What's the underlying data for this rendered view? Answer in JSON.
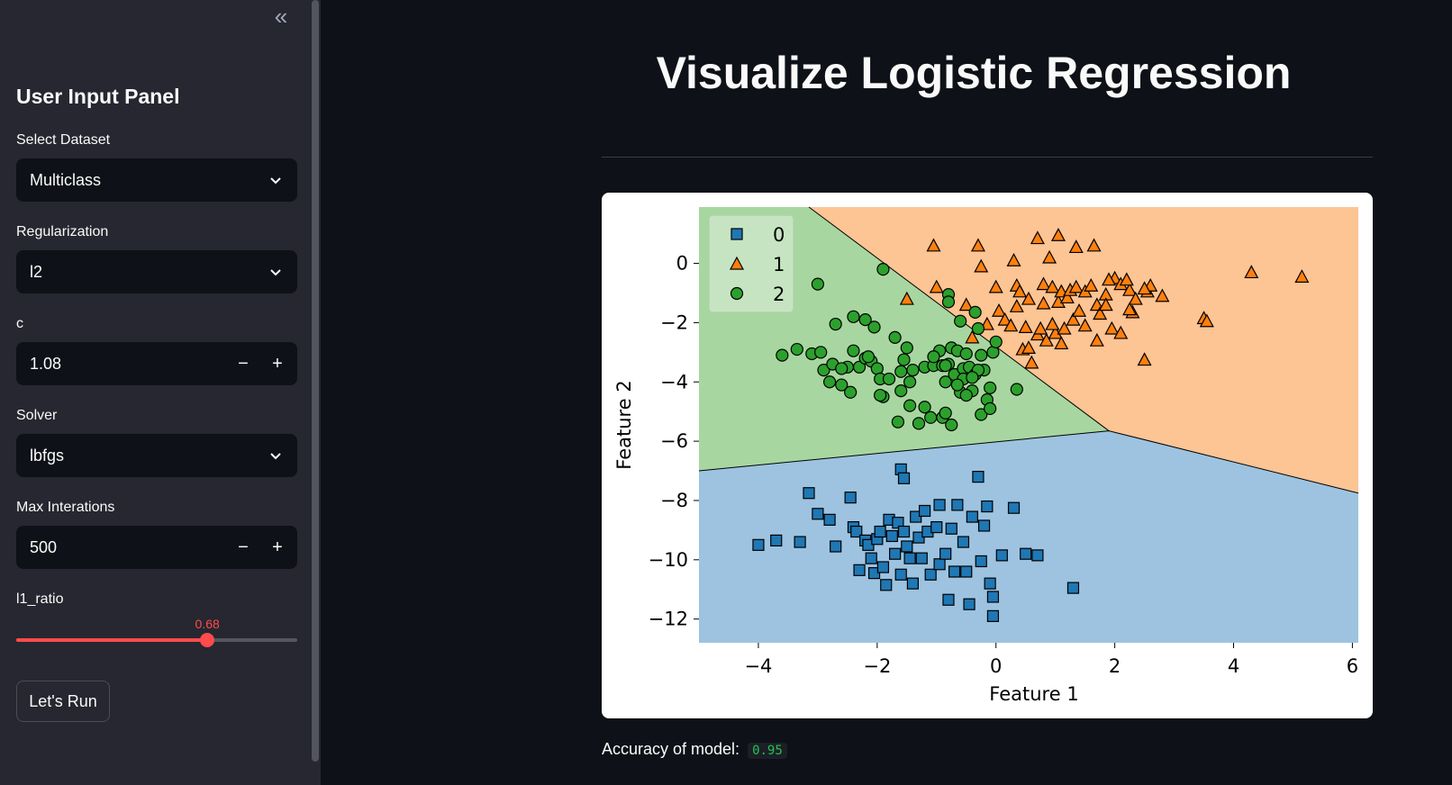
{
  "sidebar": {
    "collapse_icon": "«",
    "title": "User Input Panel",
    "dataset": {
      "label": "Select Dataset",
      "value": "Multiclass"
    },
    "regularization": {
      "label": "Regularization",
      "value": "l2"
    },
    "c": {
      "label": "c",
      "value": "1.08",
      "minus": "−",
      "plus": "+"
    },
    "solver": {
      "label": "Solver",
      "value": "lbfgs"
    },
    "max_iter": {
      "label": "Max Interations",
      "value": "500",
      "minus": "−",
      "plus": "+"
    },
    "l1_ratio": {
      "label": "l1_ratio",
      "value": "0.68",
      "min": 0,
      "max": 1
    },
    "run_button": "Let's Run"
  },
  "main": {
    "title": "Visualize Logistic Regression",
    "accuracy_label": "Accuracy of model:",
    "accuracy_value": "0.95"
  },
  "colors": {
    "accent": "#ff4b4b",
    "region_0": "#9dc3e0",
    "region_1": "#fdc494",
    "region_2": "#a8d6a0",
    "marker_0": "#1f77b4",
    "marker_1": "#ff7f0e",
    "marker_2": "#2ca02c"
  },
  "chart_data": {
    "type": "scatter",
    "title": "",
    "xlabel": "Feature 1",
    "ylabel": "Feature 2",
    "xlim": [
      -5.0,
      6.1
    ],
    "ylim": [
      -12.8,
      1.9
    ],
    "xticks": [
      -4,
      -2,
      0,
      2,
      4,
      6
    ],
    "yticks": [
      0,
      -2,
      -4,
      -6,
      -8,
      -10,
      -12
    ],
    "xtick_labels": [
      "−4",
      "−2",
      "0",
      "2",
      "4",
      "6"
    ],
    "ytick_labels": [
      "0",
      "−2",
      "−4",
      "−6",
      "−8",
      "−10",
      "−12"
    ],
    "legend": {
      "position": "top-left",
      "entries": [
        "0",
        "1",
        "2"
      ]
    },
    "boundaries": {
      "triple_point": [
        1.9,
        -5.65
      ],
      "left_x_at_y": -7.0,
      "top_x_at_ylim": -3.15,
      "right_y_at_xlim": -7.75
    },
    "series": [
      {
        "name": "0",
        "marker": "square",
        "points": [
          [
            -4.0,
            -9.5
          ],
          [
            -3.7,
            -9.35
          ],
          [
            -3.3,
            -9.4
          ],
          [
            -3.15,
            -7.75
          ],
          [
            -3.0,
            -8.45
          ],
          [
            -2.8,
            -8.65
          ],
          [
            -2.7,
            -9.55
          ],
          [
            -2.45,
            -7.9
          ],
          [
            -2.4,
            -8.9
          ],
          [
            -2.35,
            -9.05
          ],
          [
            -2.3,
            -10.35
          ],
          [
            -2.2,
            -9.35
          ],
          [
            -2.15,
            -9.5
          ],
          [
            -2.1,
            -9.95
          ],
          [
            -2.05,
            -10.45
          ],
          [
            -2.0,
            -9.3
          ],
          [
            -1.95,
            -9.05
          ],
          [
            -1.9,
            -10.25
          ],
          [
            -1.85,
            -10.85
          ],
          [
            -1.8,
            -8.65
          ],
          [
            -1.75,
            -9.2
          ],
          [
            -1.7,
            -9.8
          ],
          [
            -1.65,
            -8.75
          ],
          [
            -1.6,
            -10.5
          ],
          [
            -1.55,
            -9.05
          ],
          [
            -1.5,
            -9.55
          ],
          [
            -1.45,
            -9.95
          ],
          [
            -1.4,
            -10.8
          ],
          [
            -1.35,
            -8.55
          ],
          [
            -1.3,
            -9.25
          ],
          [
            -1.25,
            -9.95
          ],
          [
            -1.2,
            -8.35
          ],
          [
            -1.15,
            -9.05
          ],
          [
            -1.1,
            -10.5
          ],
          [
            -0.95,
            -10.15
          ],
          [
            -0.85,
            -9.8
          ],
          [
            -0.8,
            -11.35
          ],
          [
            -0.75,
            -8.95
          ],
          [
            -0.7,
            -10.4
          ],
          [
            -0.65,
            -8.15
          ],
          [
            -0.55,
            -9.4
          ],
          [
            -0.5,
            -10.4
          ],
          [
            -0.45,
            -11.5
          ],
          [
            -0.4,
            -8.55
          ],
          [
            -0.3,
            -7.2
          ],
          [
            -0.25,
            -10.05
          ],
          [
            -0.2,
            -8.85
          ],
          [
            -0.1,
            -10.8
          ],
          [
            -0.05,
            -11.9
          ],
          [
            -0.05,
            -11.25
          ],
          [
            -0.15,
            -8.2
          ],
          [
            0.1,
            -9.85
          ],
          [
            0.3,
            -8.25
          ],
          [
            0.5,
            -9.8
          ],
          [
            0.7,
            -9.85
          ],
          [
            1.3,
            -10.95
          ],
          [
            -1.6,
            -6.95
          ],
          [
            -1.55,
            -7.25
          ],
          [
            -0.95,
            -8.15
          ],
          [
            -1.0,
            -8.9
          ]
        ]
      },
      {
        "name": "1",
        "marker": "triangle",
        "points": [
          [
            -1.5,
            -1.2
          ],
          [
            -1.05,
            0.6
          ],
          [
            -1.0,
            -0.8
          ],
          [
            -0.3,
            0.6
          ],
          [
            -0.25,
            -0.1
          ],
          [
            0.0,
            -0.8
          ],
          [
            0.3,
            0.1
          ],
          [
            0.35,
            -0.75
          ],
          [
            0.4,
            -0.95
          ],
          [
            0.55,
            -1.2
          ],
          [
            0.7,
            0.85
          ],
          [
            0.8,
            -0.7
          ],
          [
            0.95,
            -0.8
          ],
          [
            1.05,
            -1.3
          ],
          [
            1.1,
            -0.95
          ],
          [
            1.2,
            -1.15
          ],
          [
            1.25,
            -0.9
          ],
          [
            1.35,
            -0.8
          ],
          [
            1.5,
            -0.95
          ],
          [
            1.6,
            -0.75
          ],
          [
            1.7,
            -1.4
          ],
          [
            1.75,
            -1.7
          ],
          [
            1.85,
            -1.05
          ],
          [
            2.0,
            -0.5
          ],
          [
            2.1,
            -0.7
          ],
          [
            2.25,
            -0.9
          ],
          [
            2.35,
            -1.2
          ],
          [
            2.55,
            -0.95
          ],
          [
            2.6,
            -0.75
          ],
          [
            2.8,
            -1.1
          ],
          [
            0.05,
            -1.6
          ],
          [
            0.15,
            -1.9
          ],
          [
            0.25,
            -2.1
          ],
          [
            0.5,
            -2.15
          ],
          [
            0.7,
            -2.4
          ],
          [
            0.85,
            -2.6
          ],
          [
            1.0,
            -2.35
          ],
          [
            1.15,
            -2.2
          ],
          [
            1.3,
            -1.9
          ],
          [
            1.5,
            -2.1
          ],
          [
            1.7,
            -2.6
          ],
          [
            1.95,
            -2.2
          ],
          [
            2.1,
            -2.35
          ],
          [
            2.3,
            -1.65
          ],
          [
            1.05,
            0.95
          ],
          [
            1.35,
            0.55
          ],
          [
            0.9,
            0.2
          ],
          [
            1.65,
            0.6
          ],
          [
            -0.5,
            -1.4
          ],
          [
            -0.15,
            -2.05
          ],
          [
            -0.4,
            -2.5
          ],
          [
            0.6,
            -3.35
          ],
          [
            2.5,
            -3.25
          ],
          [
            4.3,
            -0.3
          ],
          [
            5.15,
            -0.45
          ],
          [
            3.5,
            -1.85
          ],
          [
            3.55,
            -1.95
          ],
          [
            0.35,
            -1.45
          ],
          [
            0.8,
            -1.35
          ],
          [
            0.95,
            -2.05
          ],
          [
            0.75,
            -2.2
          ],
          [
            1.1,
            -2.7
          ],
          [
            0.45,
            -2.9
          ],
          [
            0.55,
            -2.85
          ],
          [
            1.4,
            -1.6
          ],
          [
            1.85,
            -1.4
          ],
          [
            2.25,
            -1.55
          ],
          [
            2.5,
            -0.85
          ],
          [
            2.2,
            -0.55
          ],
          [
            1.9,
            -0.55
          ]
        ]
      },
      {
        "name": "2",
        "marker": "circle",
        "points": [
          [
            -3.6,
            -3.1
          ],
          [
            -3.35,
            -2.9
          ],
          [
            -3.1,
            -3.05
          ],
          [
            -2.95,
            -3.0
          ],
          [
            -2.9,
            -3.6
          ],
          [
            -2.8,
            -4.0
          ],
          [
            -2.75,
            -3.4
          ],
          [
            -2.6,
            -4.1
          ],
          [
            -2.45,
            -4.35
          ],
          [
            -2.4,
            -2.95
          ],
          [
            -2.3,
            -3.5
          ],
          [
            -2.2,
            -3.2
          ],
          [
            -2.1,
            -3.3
          ],
          [
            -2.05,
            -2.15
          ],
          [
            -2.0,
            -3.55
          ],
          [
            -1.95,
            -3.9
          ],
          [
            -1.9,
            -4.5
          ],
          [
            -1.8,
            -3.9
          ],
          [
            -1.7,
            -2.5
          ],
          [
            -1.6,
            -3.65
          ],
          [
            -1.55,
            -3.25
          ],
          [
            -1.5,
            -2.85
          ],
          [
            -1.45,
            -4.0
          ],
          [
            -1.4,
            -3.6
          ],
          [
            -1.3,
            -5.4
          ],
          [
            -1.2,
            -3.5
          ],
          [
            -1.1,
            -5.2
          ],
          [
            -1.05,
            -3.45
          ],
          [
            -0.9,
            -3.45
          ],
          [
            -0.85,
            -4.0
          ],
          [
            -0.8,
            -3.4
          ],
          [
            -0.75,
            -2.85
          ],
          [
            -0.7,
            -3.75
          ],
          [
            -0.65,
            -2.95
          ],
          [
            -0.6,
            -4.35
          ],
          [
            -0.55,
            -3.55
          ],
          [
            -0.5,
            -3.05
          ],
          [
            -0.45,
            -3.5
          ],
          [
            -0.4,
            -4.3
          ],
          [
            -0.35,
            -3.75
          ],
          [
            -0.3,
            -2.2
          ],
          [
            -0.25,
            -3.1
          ],
          [
            -0.2,
            -3.6
          ],
          [
            -0.15,
            -4.6
          ],
          [
            -0.1,
            -4.2
          ],
          [
            -0.05,
            -3.0
          ],
          [
            0.0,
            -2.65
          ],
          [
            0.35,
            -4.25
          ],
          [
            -2.7,
            -2.05
          ],
          [
            -2.4,
            -1.8
          ],
          [
            -2.2,
            -1.9
          ],
          [
            -0.9,
            -5.2
          ],
          [
            -0.85,
            -5.05
          ],
          [
            -0.75,
            -5.45
          ],
          [
            -0.25,
            -5.1
          ],
          [
            -0.35,
            -1.65
          ],
          [
            -0.8,
            -1.05
          ],
          [
            -0.8,
            -1.3
          ],
          [
            -0.6,
            -1.95
          ],
          [
            -2.5,
            -3.5
          ],
          [
            -0.95,
            -2.95
          ],
          [
            -1.6,
            -4.3
          ],
          [
            -1.05,
            -3.15
          ],
          [
            -0.3,
            -3.6
          ],
          [
            -3.0,
            -0.7
          ],
          [
            -1.9,
            -0.2
          ],
          [
            -2.15,
            -3.15
          ],
          [
            -2.6,
            -3.55
          ],
          [
            -1.95,
            -4.45
          ],
          [
            -1.65,
            -5.35
          ],
          [
            -1.45,
            -4.8
          ],
          [
            -1.2,
            -4.85
          ],
          [
            -0.85,
            -3.45
          ],
          [
            -0.55,
            -3.9
          ],
          [
            -0.4,
            -3.85
          ],
          [
            -0.5,
            -4.45
          ],
          [
            -0.65,
            -4.1
          ],
          [
            -0.1,
            -4.9
          ]
        ]
      }
    ]
  }
}
